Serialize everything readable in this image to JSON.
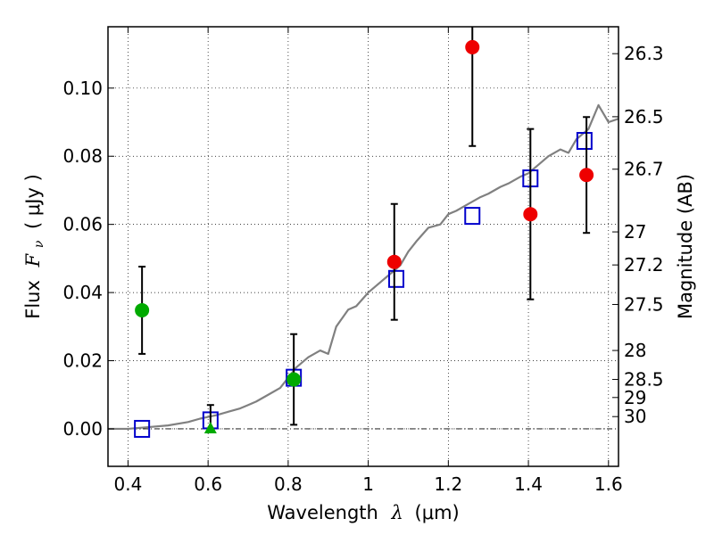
{
  "chart_data": {
    "type": "scatter",
    "xlabel": "Wavelength",
    "xlabel_symbol": "λ",
    "xlabel_unit": "(μm)",
    "ylabel": "Flux",
    "ylabel_symbol": "F",
    "ylabel_subscript": "ν",
    "ylabel_unit": "( μJy )",
    "ylabel_right": "Magnitude (AB)",
    "xlim": [
      0.35,
      1.625
    ],
    "ylim": [
      -0.011,
      0.118
    ],
    "grid": true,
    "x_ticks": [
      0.4,
      0.6,
      0.8,
      1.0,
      1.2,
      1.4,
      1.6
    ],
    "x_tick_labels": [
      "0.4",
      "0.6",
      "0.8",
      "1",
      "1.2",
      "1.4",
      "1.6"
    ],
    "y_ticks": [
      0.0,
      0.02,
      0.04,
      0.06,
      0.08,
      0.1
    ],
    "y_tick_labels": [
      "0.00",
      "0.02",
      "0.04",
      "0.06",
      "0.08",
      "0.10"
    ],
    "mag_ticks": [
      {
        "label": "26.3",
        "flux": 0.1101
      },
      {
        "label": "26.5",
        "flux": 0.0916
      },
      {
        "label": "26.7",
        "flux": 0.0762
      },
      {
        "label": "27",
        "flux": 0.0578
      },
      {
        "label": "27.2",
        "flux": 0.0481
      },
      {
        "label": "27.5",
        "flux": 0.0365
      },
      {
        "label": "28",
        "flux": 0.023
      },
      {
        "label": "28.5",
        "flux": 0.0145
      },
      {
        "label": "29",
        "flux": 0.0092
      },
      {
        "label": "30",
        "flux": 0.0036
      }
    ],
    "series": [
      {
        "name": "Model spectrum",
        "type": "line",
        "color": "#808080",
        "x": [
          0.35,
          0.4,
          0.45,
          0.5,
          0.55,
          0.58,
          0.6,
          0.62,
          0.65,
          0.68,
          0.7,
          0.72,
          0.75,
          0.78,
          0.8,
          0.82,
          0.85,
          0.88,
          0.9,
          0.92,
          0.95,
          0.97,
          1.0,
          1.02,
          1.05,
          1.08,
          1.1,
          1.12,
          1.15,
          1.18,
          1.2,
          1.22,
          1.25,
          1.28,
          1.3,
          1.33,
          1.35,
          1.38,
          1.4,
          1.42,
          1.45,
          1.48,
          1.5,
          1.52,
          1.55,
          1.575,
          1.6,
          1.625
        ],
        "y": [
          0.0,
          0.0,
          0.0005,
          0.001,
          0.002,
          0.003,
          0.0035,
          0.004,
          0.005,
          0.006,
          0.007,
          0.008,
          0.01,
          0.012,
          0.015,
          0.018,
          0.021,
          0.023,
          0.022,
          0.03,
          0.035,
          0.036,
          0.04,
          0.042,
          0.045,
          0.048,
          0.052,
          0.055,
          0.059,
          0.06,
          0.063,
          0.064,
          0.066,
          0.068,
          0.069,
          0.071,
          0.072,
          0.074,
          0.075,
          0.077,
          0.08,
          0.082,
          0.081,
          0.085,
          0.088,
          0.095,
          0.09,
          0.091
        ]
      },
      {
        "name": "Model band flux",
        "type": "scatter",
        "marker": "open-square",
        "color": "#0000cc",
        "x": [
          0.435,
          0.606,
          0.814,
          1.07,
          1.26,
          1.405,
          1.54
        ],
        "y": [
          0.0,
          0.0025,
          0.015,
          0.044,
          0.0625,
          0.0735,
          0.0845
        ]
      },
      {
        "name": "Observed (red)",
        "type": "scatter",
        "marker": "circle",
        "color": "#ee0000",
        "x": [
          1.065,
          1.26,
          1.405,
          1.545
        ],
        "y": [
          0.049,
          0.112,
          0.063,
          0.0745
        ],
        "err": [
          0.017,
          0.029,
          0.025,
          0.017
        ]
      },
      {
        "name": "Observed (green)",
        "type": "scatter",
        "marker": "circle",
        "color": "#00aa00",
        "x": [
          0.435,
          0.814
        ],
        "y": [
          0.0348,
          0.0145
        ],
        "err": [
          0.0128,
          0.0133
        ]
      },
      {
        "name": "Upper limit",
        "type": "scatter",
        "marker": "triangle",
        "color": "#00aa00",
        "x": [
          0.606
        ],
        "y": [
          0.0
        ],
        "err_low": [
          0.0
        ],
        "err_high": [
          0.007
        ]
      }
    ]
  }
}
